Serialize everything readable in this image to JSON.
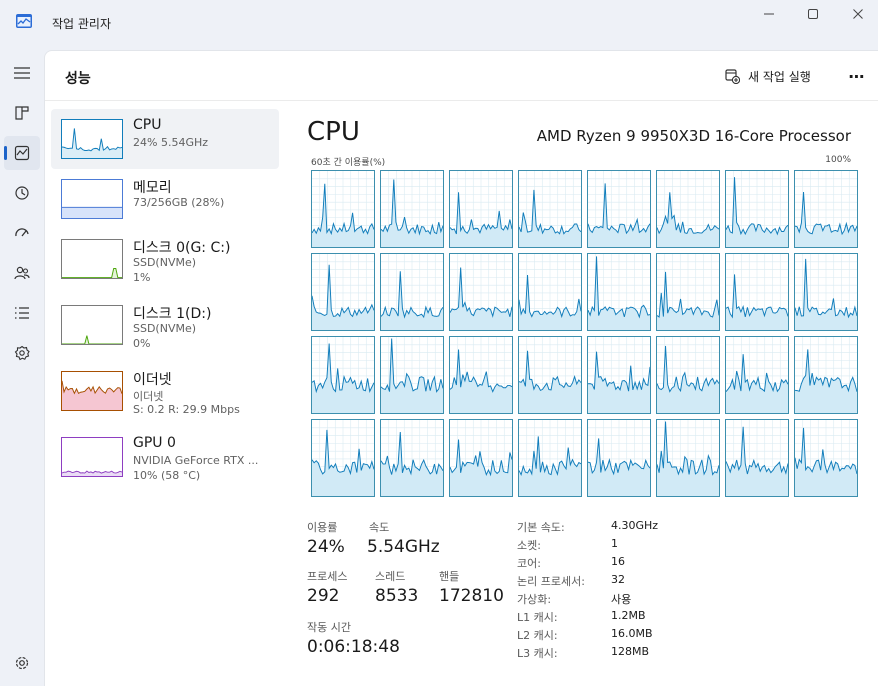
{
  "app": {
    "title": "작업 관리자"
  },
  "header": {
    "page_title": "성능",
    "run_task_label": "새 작업 실행",
    "more_label": "⋯"
  },
  "nav": {
    "items": [
      "hamburger-icon",
      "processes-icon",
      "performance-icon",
      "app-history-icon",
      "startup-apps-icon",
      "users-icon",
      "details-icon",
      "services-icon",
      "settings-icon"
    ]
  },
  "sidebar": {
    "items": [
      {
        "name": "CPU",
        "sub1": "24% 5.54GHz",
        "sub2": "",
        "sub3": "",
        "color": "#117dbb",
        "fill": "#dbeef7",
        "usage": 0.24
      },
      {
        "name": "메모리",
        "sub1": "73/256GB (28%)",
        "sub2": "",
        "sub3": "",
        "color": "#4c7bd6",
        "fill": "#d7e3fa",
        "usage": 0.28
      },
      {
        "name": "디스크 0(G: C:)",
        "sub1": "SSD(NVMe)",
        "sub2": "1%",
        "sub3": "",
        "color": "#4da60c",
        "fill": "#e5f3da",
        "usage": 0.01
      },
      {
        "name": "디스크 1(D:)",
        "sub1": "SSD(NVMe)",
        "sub2": "0%",
        "sub3": "",
        "color": "#4da60c",
        "fill": "#e5f3da",
        "usage": 0.0
      },
      {
        "name": "이더넷",
        "sub1": "이더넷",
        "sub2": "S: 0.2  R: 29.9 Mbps",
        "sub3": "",
        "color": "#a74f01",
        "fill": "#f5c6d2",
        "usage": 0.4
      },
      {
        "name": "GPU 0",
        "sub1": "NVIDIA GeForce RTX ...",
        "sub2": "10% (58 °C)",
        "sub3": "",
        "color": "#8e3ec1",
        "fill": "#eadcf5",
        "usage": 0.1
      }
    ]
  },
  "main": {
    "title": "CPU",
    "model": "AMD Ryzen 9 9950X3D 16-Core Processor",
    "graph_left_label": "60초 간 이용률(%)",
    "graph_right_label": "100%",
    "stats": {
      "usage_label": "이용률",
      "usage_value": "24%",
      "speed_label": "속도",
      "speed_value": "5.54GHz",
      "processes_label": "프로세스",
      "processes_value": "292",
      "threads_label": "스레드",
      "threads_value": "8533",
      "handles_label": "핸들",
      "handles_value": "172810",
      "uptime_label": "작동 시간",
      "uptime_value": "0:06:18:48"
    },
    "info": [
      {
        "label": "기본 속도:",
        "value": "4.30GHz"
      },
      {
        "label": "소켓:",
        "value": "1"
      },
      {
        "label": "코어:",
        "value": "16"
      },
      {
        "label": "논리 프로세서:",
        "value": "32"
      },
      {
        "label": "가상화:",
        "value": "사용"
      },
      {
        "label": "L1 캐시:",
        "value": "1.2MB"
      },
      {
        "label": "L2 캐시:",
        "value": "16.0MB"
      },
      {
        "label": "L3 캐시:",
        "value": "128MB"
      }
    ]
  },
  "colors": {
    "accent": "#1c63c9",
    "cpu_line": "#117dbb",
    "cpu_fill": "#d1eaf6",
    "grid": "#d9eaf2"
  }
}
